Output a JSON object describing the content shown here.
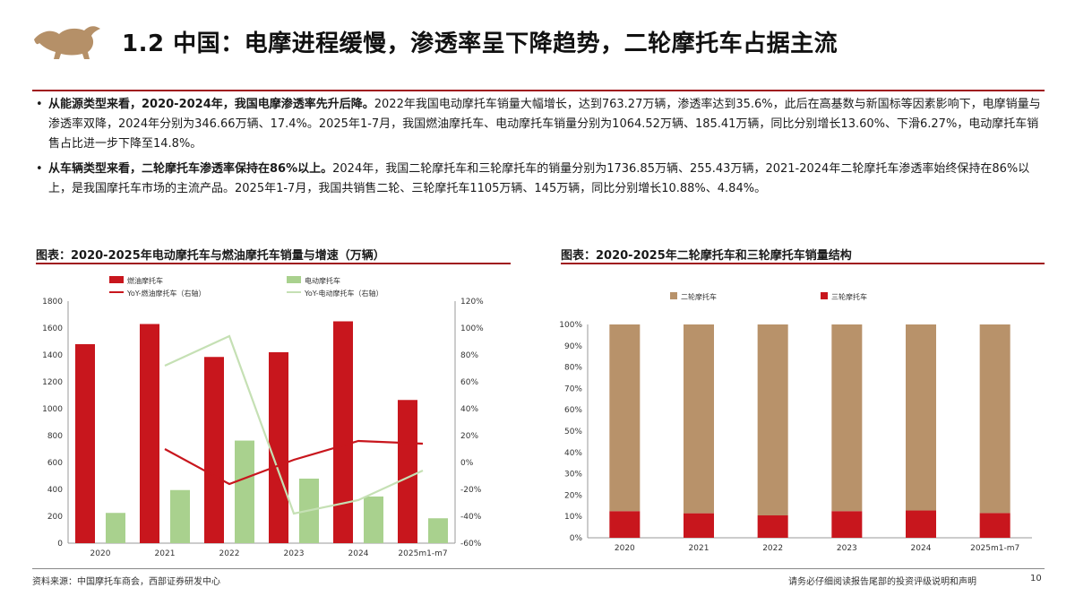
{
  "page": {
    "title": "1.2 中国：电摩进程缓慢，渗透率呈下降趋势，二轮摩托车占据主流",
    "bullets": [
      {
        "bold": "从能源类型来看，2020-2024年，我国电摩渗透率先升后降。",
        "text": "2022年我国电动摩托车销量大幅增长，达到763.27万辆，渗透率达到35.6%，此后在高基数与新国标等因素影响下，电摩销量与渗透率双降，2024年分别为346.66万辆、17.4%。2025年1-7月，我国燃油摩托车、电动摩托车销量分别为1064.52万辆、185.41万辆，同比分别增长13.60%、下滑6.27%，电动摩托车销售占比进一步下降至14.8%。"
      },
      {
        "bold": "从车辆类型来看，二轮摩托车渗透率保持在86%以上。",
        "text": "2024年，我国二轮摩托车和三轮摩托车的销量分别为1736.85万辆、255.43万辆，2021-2024年二轮摩托车渗透率始终保持在86%以上，是我国摩托车市场的主流产品。2025年1-7月，我国共销售二轮、三轮摩托车1105万辆、145万辆，同比分别增长10.88%、4.84%。"
      }
    ],
    "source": "资料来源：中国摩托车商会，西部证券研发中心",
    "disclaimer": "请务必仔细阅读报告尾部的投资评级说明和声明",
    "page_number": "10"
  },
  "colors": {
    "accent": "#a0151d",
    "fuel_bar": "#c8161d",
    "electric_bar": "#a9d18e",
    "fuel_line": "#c8161d",
    "electric_line": "#c5e0b4",
    "two_wheel": "#b8926a",
    "three_wheel": "#c8161d"
  },
  "chart_data": [
    {
      "type": "bar",
      "title": "图表：2020-2025年电动摩托车与燃油摩托车销量与增速（万辆）",
      "categories": [
        "2020",
        "2021",
        "2022",
        "2023",
        "2024",
        "2025m1-m7"
      ],
      "series": [
        {
          "name": "燃油摩托车",
          "kind": "bar",
          "axis": "left",
          "values": [
            1480,
            1630,
            1385,
            1420,
            1650,
            1065
          ]
        },
        {
          "name": "电动摩托车",
          "kind": "bar",
          "axis": "left",
          "values": [
            225,
            395,
            763,
            480,
            347,
            185
          ]
        },
        {
          "name": "YoY-燃油摩托车（右轴）",
          "kind": "line",
          "axis": "right",
          "values": [
            null,
            10,
            -16,
            2,
            16,
            14
          ]
        },
        {
          "name": "YoY-电动摩托车（右轴）",
          "kind": "line",
          "axis": "right",
          "values": [
            null,
            72,
            94,
            -38,
            -28,
            -6
          ]
        }
      ],
      "ylim_left": [
        0,
        1800
      ],
      "yticks_left": [
        "0",
        "200",
        "400",
        "600",
        "800",
        "1000",
        "1200",
        "1400",
        "1600",
        "1800"
      ],
      "ylim_right": [
        -60,
        120
      ],
      "yticks_right": [
        "-60%",
        "-40%",
        "-20%",
        "0%",
        "20%",
        "40%",
        "60%",
        "80%",
        "100%",
        "120%"
      ],
      "legend": "top"
    },
    {
      "type": "bar",
      "stacked": "percent",
      "title": "图表：2020-2025年二轮摩托车和三轮摩托车销量结构",
      "categories": [
        "2020",
        "2021",
        "2022",
        "2023",
        "2024",
        "2025m1-m7"
      ],
      "series": [
        {
          "name": "三轮摩托车",
          "values": [
            12.5,
            11.5,
            10.5,
            12.5,
            12.8,
            11.6
          ]
        },
        {
          "name": "二轮摩托车",
          "values": [
            87.5,
            88.5,
            89.5,
            87.5,
            87.2,
            88.4
          ]
        }
      ],
      "ylim": [
        0,
        100
      ],
      "yticks": [
        "0%",
        "10%",
        "20%",
        "30%",
        "40%",
        "50%",
        "60%",
        "70%",
        "80%",
        "90%",
        "100%"
      ],
      "legend": "top"
    }
  ]
}
